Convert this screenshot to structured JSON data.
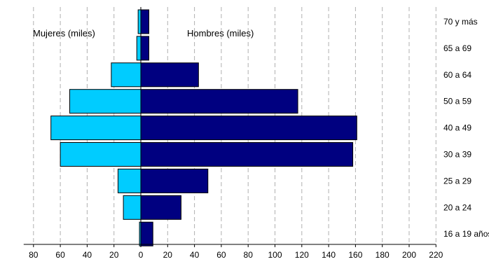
{
  "chart_data": {
    "type": "bar",
    "orientation": "horizontal",
    "subtype": "population-pyramid",
    "categories": [
      "16 a 19 años",
      "20 a 24",
      "25 a 29",
      "30 a 39",
      "40 a 49",
      "50 a 59",
      "60 a 64",
      "65 a 69",
      "70 y más"
    ],
    "series": [
      {
        "name": "Mujeres (miles)",
        "side": "left",
        "color": "#00ccff",
        "values": [
          1,
          13,
          17,
          60,
          67,
          53,
          22,
          3,
          2
        ]
      },
      {
        "name": "Hombres (miles)",
        "side": "right",
        "color": "#000080",
        "values": [
          9,
          30,
          50,
          158,
          161,
          117,
          43,
          6,
          6
        ]
      }
    ],
    "xticks": [
      {
        "pos": -80,
        "label": "80"
      },
      {
        "pos": -60,
        "label": "60"
      },
      {
        "pos": -40,
        "label": "40"
      },
      {
        "pos": -20,
        "label": "20"
      },
      {
        "pos": 0,
        "label": "0"
      },
      {
        "pos": 20,
        "label": "20"
      },
      {
        "pos": 40,
        "label": "40"
      },
      {
        "pos": 60,
        "label": "60"
      },
      {
        "pos": 80,
        "label": "80"
      },
      {
        "pos": 100,
        "label": "100"
      },
      {
        "pos": 120,
        "label": "120"
      },
      {
        "pos": 140,
        "label": "140"
      },
      {
        "pos": 160,
        "label": "160"
      },
      {
        "pos": 180,
        "label": "180"
      },
      {
        "pos": 200,
        "label": "200"
      },
      {
        "pos": 220,
        "label": "220"
      }
    ],
    "xlim": [
      -80,
      220
    ],
    "grid": true,
    "annotations": {
      "left_label": "Mujeres (miles)",
      "right_label": "Hombres (miles)"
    }
  }
}
